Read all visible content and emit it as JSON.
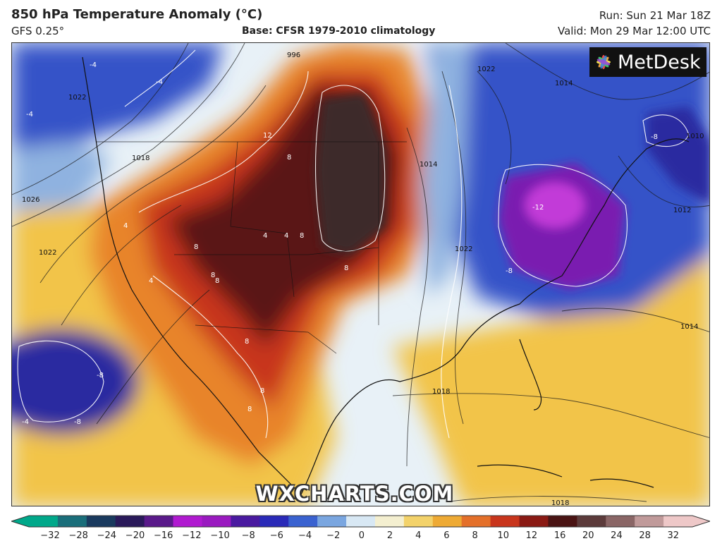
{
  "header": {
    "title": "850 hPa Temperature Anomaly (°C)",
    "model": "GFS 0.25°",
    "base": "Base: CFSR 1979-2010 climatology",
    "run": "Run: Sun 21 Mar 18Z",
    "valid": "Valid: Mon 29 Mar 12:00 UTC"
  },
  "logo": {
    "text": "MetDesk",
    "icon": "metdesk-flower-icon"
  },
  "watermark": "WXCHARTS.COM",
  "colors": {
    "ocean_neutral": "#e8f1f7",
    "warm_yellow": "#f2c44a",
    "warm_orange": "#e8842a",
    "warm_red": "#c8351c",
    "warm_maroon": "#5a1412",
    "warm_dark": "#3d2b2b",
    "cold_lightblue": "#8fb2e0",
    "cold_blue": "#3652c8",
    "cold_darkblue": "#2a2aa0",
    "cold_purple": "#7a1ab0",
    "cold_magenta": "#c23ad8"
  },
  "map": {
    "isobar_labels": [
      "1022",
      "1026",
      "1022",
      "1018",
      "1014",
      "1022",
      "1014",
      "1012",
      "1018",
      "1014",
      "1018",
      "1010",
      "1022",
      "996"
    ],
    "anomaly_labels": [
      "12",
      "8",
      "8",
      "8",
      "8",
      "8",
      "8",
      "8",
      "8",
      "4",
      "4",
      "4",
      "4",
      "-4",
      "-4",
      "-4",
      "-8",
      "-8",
      "-8",
      "-12",
      "-8",
      "-4",
      "8"
    ]
  },
  "colorbar": {
    "ticks": [
      "−32",
      "−28",
      "−24",
      "−20",
      "−16",
      "−12",
      "−10",
      "−8",
      "−6",
      "−4",
      "−2",
      "0",
      "2",
      "4",
      "6",
      "8",
      "10",
      "12",
      "16",
      "20",
      "24",
      "28",
      "32"
    ],
    "colors": [
      "#00a88a",
      "#1a6e7a",
      "#1a3a5e",
      "#2a1a5a",
      "#5a1a8a",
      "#b01ad0",
      "#9a1ac0",
      "#4a1aa0",
      "#2a2ab8",
      "#3a62d0",
      "#7aa6e0",
      "#d8e8f4",
      "#f4efd0",
      "#f3d26a",
      "#eeaa34",
      "#e4702a",
      "#c8351c",
      "#8a1a14",
      "#4a1414",
      "#5c3b3b",
      "#8a6666",
      "#c09a9a",
      "#eec8c8"
    ]
  }
}
